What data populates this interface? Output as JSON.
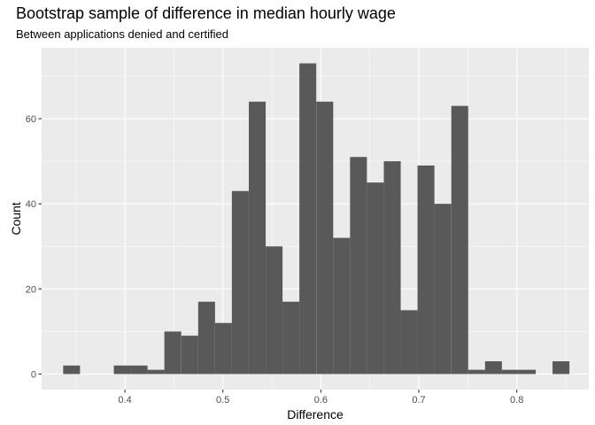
{
  "chart_data": {
    "type": "bar",
    "title": "Bootstrap sample of difference in median hourly wage",
    "subtitle": "Between applications denied and certified",
    "xlabel": "Difference",
    "ylabel": "Count",
    "xlim": [
      0.315,
      0.8735
    ],
    "ylim": [
      -3.65,
      76.65
    ],
    "x_ticks": [
      0.4,
      0.5,
      0.6,
      0.7,
      0.8
    ],
    "x_tick_labels": [
      "0.4",
      "0.5",
      "0.6",
      "0.7",
      "0.8"
    ],
    "y_ticks": [
      0,
      20,
      40,
      60
    ],
    "y_tick_labels": [
      "0",
      "20",
      "40",
      "60"
    ],
    "grid": true,
    "bin_width": 0.01722,
    "bin_centers": [
      0.3456,
      0.3628,
      0.38,
      0.3973,
      0.4145,
      0.4317,
      0.4489,
      0.4662,
      0.4834,
      0.5006,
      0.5178,
      0.5351,
      0.5523,
      0.5695,
      0.5867,
      0.604,
      0.6212,
      0.6384,
      0.6556,
      0.6729,
      0.6901,
      0.7073,
      0.7245,
      0.7418,
      0.759,
      0.7762,
      0.7934,
      0.8107,
      0.8279,
      0.8451
    ],
    "values": [
      2,
      0,
      0,
      2,
      2,
      1,
      10,
      9,
      17,
      12,
      43,
      64,
      30,
      17,
      73,
      64,
      32,
      51,
      45,
      50,
      15,
      49,
      40,
      63,
      1,
      3,
      1,
      1,
      0,
      3
    ],
    "bar_color": "#595959",
    "panel_color": "#ebebeb"
  }
}
